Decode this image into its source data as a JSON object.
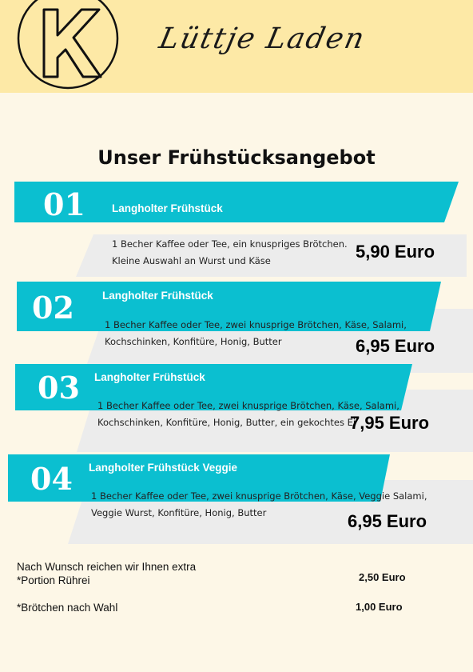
{
  "header": {
    "brand": "Lüttje Laden",
    "logo_letter": "K"
  },
  "title": "Unser Frühstücksangebot",
  "items": [
    {
      "number": "01",
      "name": "Langholter Frühstück",
      "desc_lines": [
        "1 Becher Kaffee oder Tee, ein knuspriges Brötchen.",
        "Kleine Auswahl an Wurst und Käse"
      ],
      "price": "5,90 Euro"
    },
    {
      "number": "02",
      "name": "Langholter Frühstück",
      "desc_lines": [
        "1 Becher Kaffee oder Tee, zwei knusprige Brötchen, Käse, Salami,",
        "Kochschinken, Konfitüre, Honig, Butter"
      ],
      "price": "6,95 Euro"
    },
    {
      "number": "03",
      "name": "Langholter Frühstück",
      "desc_lines": [
        "1 Becher Kaffee oder Tee, zwei knusprige Brötchen, Käse, Salami,",
        "Kochschinken, Konfitüre, Honig, Butter, ein gekochtes Ei"
      ],
      "price": "7,95 Euro"
    },
    {
      "number": "04",
      "name": "Langholter Frühstück Veggie",
      "desc_lines": [
        "1 Becher Kaffee oder Tee, zwei knusprige Brötchen, Käse, Veggie Salami,",
        "Veggie Wurst, Konfitüre, Honig, Butter"
      ],
      "price": "6,95 Euro"
    }
  ],
  "extras": {
    "intro": "Nach Wunsch reichen wir Ihnen extra",
    "lines": [
      {
        "label": "*Portion Rührei",
        "price": "2,50 Euro"
      },
      {
        "label": "*Brötchen nach Wahl",
        "price": "1,00 Euro"
      }
    ]
  },
  "colors": {
    "accent": "#0bbfd0",
    "header_bg": "#fde9a6",
    "page_bg": "#fdf7e7",
    "panel": "#ececec"
  }
}
